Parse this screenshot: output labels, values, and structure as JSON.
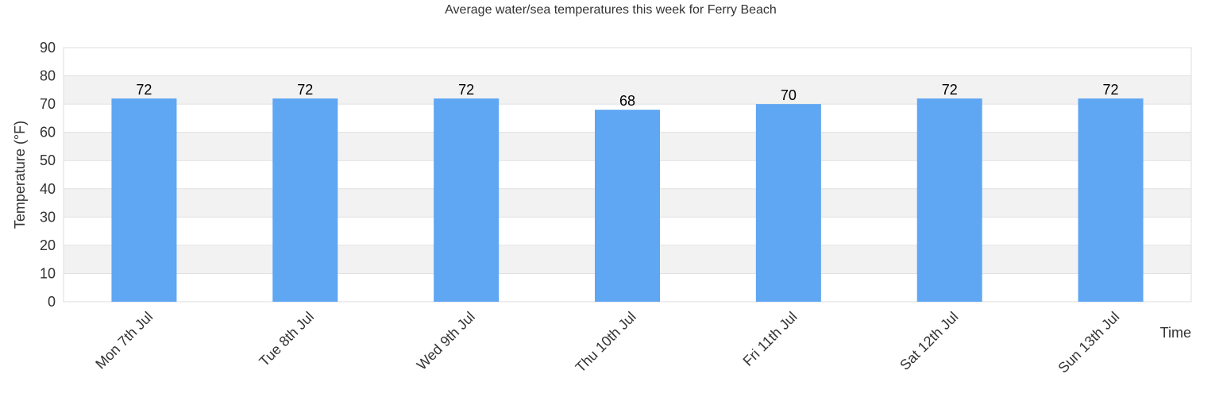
{
  "chart_data": {
    "type": "bar",
    "title": "Average water/sea temperatures this week for Ferry Beach",
    "xlabel": "Time",
    "ylabel": "Temperature (°F)",
    "categories": [
      "Mon 7th Jul",
      "Tue 8th Jul",
      "Wed 9th Jul",
      "Thu 10th Jul",
      "Fri 11th Jul",
      "Sat 12th Jul",
      "Sun 13th Jul"
    ],
    "values": [
      72,
      72,
      72,
      68,
      70,
      72,
      72
    ],
    "data_labels": [
      "72",
      "72",
      "72",
      "68",
      "70",
      "72",
      "72"
    ],
    "ylim": [
      0,
      90
    ],
    "yticks": [
      0,
      10,
      20,
      30,
      40,
      50,
      60,
      70,
      80,
      90
    ],
    "ytick_labels": [
      "0",
      "10",
      "20",
      "30",
      "40",
      "50",
      "60",
      "70",
      "80",
      "90"
    ],
    "grid": true,
    "alternating_bands": true,
    "legend": "none",
    "colors": {
      "bar": "#5fa6f3",
      "band": "#f2f2f2",
      "grid": "#e0e0e0",
      "axis_text": "#333333",
      "label_text": "#000000"
    }
  }
}
